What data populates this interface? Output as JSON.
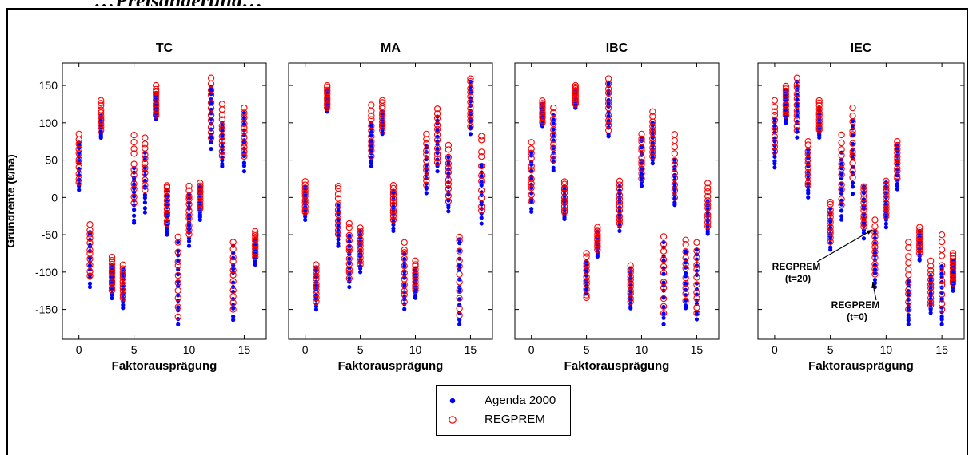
{
  "heading_fragment": "…Preisänderung…",
  "chart_data": [
    {
      "type": "scatter",
      "title": "TC",
      "xlabel": "Faktorausprägung",
      "ylabel": "Grundrente (€/ha)",
      "xlim": [
        -1.5,
        17
      ],
      "ylim": [
        -190,
        180
      ],
      "xticks": [
        0,
        5,
        10,
        15
      ],
      "yticks": [
        -150,
        -100,
        -50,
        0,
        50,
        100,
        150
      ],
      "grid": false,
      "series": [
        {
          "name": "Agenda 2000",
          "ranges": [
            [
              0,
              10,
              75
            ],
            [
              1,
              -120,
              -45
            ],
            [
              2,
              80,
              110
            ],
            [
              3,
              -135,
              -90
            ],
            [
              4,
              -148,
              -95
            ],
            [
              5,
              -35,
              40
            ],
            [
              6,
              -20,
              60
            ],
            [
              7,
              105,
              140
            ],
            [
              8,
              -50,
              10
            ],
            [
              9,
              -170,
              -60
            ],
            [
              10,
              -65,
              5
            ],
            [
              11,
              -30,
              15
            ],
            [
              12,
              65,
              150
            ],
            [
              13,
              40,
              100
            ],
            [
              14,
              -165,
              -65
            ],
            [
              15,
              35,
              115
            ],
            [
              16,
              -90,
              -55
            ]
          ]
        },
        {
          "name": "REGPREM",
          "ranges": [
            [
              0,
              20,
              85
            ],
            [
              1,
              -105,
              -35
            ],
            [
              2,
              90,
              130
            ],
            [
              3,
              -125,
              -80
            ],
            [
              4,
              -135,
              -90
            ],
            [
              5,
              -10,
              85
            ],
            [
              6,
              10,
              80
            ],
            [
              7,
              110,
              150
            ],
            [
              8,
              -35,
              17
            ],
            [
              9,
              -160,
              -50
            ],
            [
              10,
              -50,
              17
            ],
            [
              11,
              -15,
              20
            ],
            [
              12,
              80,
              160
            ],
            [
              13,
              55,
              125
            ],
            [
              14,
              -150,
              -60
            ],
            [
              15,
              55,
              120
            ],
            [
              16,
              -80,
              -45
            ]
          ]
        }
      ]
    },
    {
      "type": "scatter",
      "title": "MA",
      "xlabel": "Faktorausprägung",
      "ylabel": "",
      "xlim": [
        -1.5,
        17
      ],
      "ylim": [
        -190,
        180
      ],
      "xticks": [
        0,
        5,
        10,
        15
      ],
      "yticks": [
        -150,
        -100,
        -50,
        0,
        50,
        100,
        150
      ],
      "grid": false,
      "series": [
        {
          "name": "Agenda 2000",
          "ranges": [
            [
              0,
              -30,
              15
            ],
            [
              1,
              -150,
              -95
            ],
            [
              2,
              115,
              145
            ],
            [
              3,
              -65,
              -10
            ],
            [
              4,
              -120,
              -50
            ],
            [
              5,
              -100,
              -45
            ],
            [
              6,
              40,
              100
            ],
            [
              7,
              85,
              115
            ],
            [
              8,
              -45,
              10
            ],
            [
              9,
              -150,
              -75
            ],
            [
              10,
              -135,
              -95
            ],
            [
              11,
              5,
              70
            ],
            [
              12,
              35,
              110
            ],
            [
              13,
              -20,
              55
            ],
            [
              14,
              -170,
              -55
            ],
            [
              15,
              85,
              155
            ],
            [
              16,
              -35,
              45
            ]
          ]
        },
        {
          "name": "REGPREM",
          "ranges": [
            [
              0,
              -20,
              22
            ],
            [
              1,
              -140,
              -90
            ],
            [
              2,
              120,
              150
            ],
            [
              3,
              -50,
              17
            ],
            [
              4,
              -110,
              -35
            ],
            [
              5,
              -90,
              -40
            ],
            [
              6,
              55,
              125
            ],
            [
              7,
              90,
              130
            ],
            [
              8,
              -30,
              17
            ],
            [
              9,
              -140,
              -60
            ],
            [
              10,
              -125,
              -85
            ],
            [
              11,
              15,
              85
            ],
            [
              12,
              45,
              120
            ],
            [
              13,
              -5,
              70
            ],
            [
              14,
              -160,
              -50
            ],
            [
              15,
              95,
              160
            ],
            [
              16,
              -20,
              85
            ]
          ]
        }
      ]
    },
    {
      "type": "scatter",
      "title": "IBC",
      "xlabel": "Faktorausprägung",
      "ylabel": "",
      "xlim": [
        -1.5,
        17
      ],
      "ylim": [
        -190,
        180
      ],
      "xticks": [
        0,
        5,
        10,
        15
      ],
      "yticks": [
        -150,
        -100,
        -50,
        0,
        50,
        100,
        150
      ],
      "grid": false,
      "series": [
        {
          "name": "Agenda 2000",
          "ranges": [
            [
              0,
              -20,
              60
            ],
            [
              1,
              95,
              125
            ],
            [
              2,
              35,
              110
            ],
            [
              3,
              -30,
              15
            ],
            [
              4,
              120,
              145
            ],
            [
              5,
              -130,
              -85
            ],
            [
              6,
              -80,
              -45
            ],
            [
              7,
              80,
              155
            ],
            [
              8,
              -45,
              15
            ],
            [
              9,
              -150,
              -95
            ],
            [
              10,
              15,
              80
            ],
            [
              11,
              45,
              100
            ],
            [
              12,
              -170,
              -60
            ],
            [
              13,
              -10,
              50
            ],
            [
              14,
              -150,
              -70
            ],
            [
              15,
              -165,
              -70
            ],
            [
              16,
              -50,
              -5
            ]
          ]
        },
        {
          "name": "REGPREM",
          "ranges": [
            [
              0,
              -5,
              75
            ],
            [
              1,
              100,
              130
            ],
            [
              2,
              50,
              120
            ],
            [
              3,
              -20,
              22
            ],
            [
              4,
              125,
              150
            ],
            [
              5,
              -135,
              -75
            ],
            [
              6,
              -70,
              -40
            ],
            [
              7,
              90,
              160
            ],
            [
              8,
              -35,
              22
            ],
            [
              9,
              -140,
              -90
            ],
            [
              10,
              25,
              85
            ],
            [
              11,
              55,
              115
            ],
            [
              12,
              -155,
              -50
            ],
            [
              13,
              0,
              85
            ],
            [
              14,
              -140,
              -55
            ],
            [
              15,
              -155,
              -60
            ],
            [
              16,
              -40,
              20
            ]
          ]
        }
      ]
    },
    {
      "type": "scatter",
      "title": "IEC",
      "xlabel": "Faktorausprägung",
      "ylabel": "",
      "xlim": [
        -1.5,
        17
      ],
      "ylim": [
        -190,
        180
      ],
      "xticks": [
        0,
        5,
        10,
        15
      ],
      "yticks": [
        -150,
        -100,
        -50,
        0,
        50,
        100,
        150
      ],
      "grid": false,
      "series": [
        {
          "name": "Agenda 2000",
          "ranges": [
            [
              0,
              40,
              105
            ],
            [
              1,
              100,
              145
            ],
            [
              2,
              80,
              155
            ],
            [
              3,
              0,
              65
            ],
            [
              4,
              80,
              120
            ],
            [
              5,
              -70,
              -15
            ],
            [
              6,
              -30,
              60
            ],
            [
              7,
              5,
              105
            ],
            [
              8,
              -55,
              15
            ],
            [
              9,
              -120,
              -45
            ],
            [
              10,
              -40,
              20
            ],
            [
              11,
              10,
              70
            ],
            [
              12,
              -170,
              -110
            ],
            [
              13,
              -85,
              -45
            ],
            [
              14,
              -155,
              -105
            ],
            [
              15,
              -170,
              -90
            ],
            [
              16,
              -125,
              -85
            ]
          ]
        },
        {
          "name": "REGPREM",
          "ranges": [
            [
              0,
              60,
              130
            ],
            [
              1,
              110,
              150
            ],
            [
              2,
              90,
              160
            ],
            [
              3,
              15,
              75
            ],
            [
              4,
              90,
              130
            ],
            [
              5,
              -60,
              -5
            ],
            [
              6,
              -10,
              85
            ],
            [
              7,
              25,
              120
            ],
            [
              8,
              -40,
              15
            ],
            [
              9,
              -105,
              -30
            ],
            [
              10,
              -25,
              22
            ],
            [
              11,
              25,
              75
            ],
            [
              12,
              -150,
              -60
            ],
            [
              13,
              -75,
              -40
            ],
            [
              14,
              -145,
              -85
            ],
            [
              15,
              -150,
              -50
            ],
            [
              16,
              -115,
              -75
            ]
          ]
        }
      ],
      "annotations": [
        {
          "text": "REGPREM",
          "text2": "(t=20)",
          "x": 9,
          "y": -40
        },
        {
          "text": "REGPREM",
          "text2": "(t=0)",
          "x": 9,
          "y": -110
        }
      ]
    }
  ],
  "legend": {
    "placement": "bottom-center",
    "entries": [
      {
        "label": "Agenda 2000",
        "marker": "filled-dot",
        "color": "#0000ff"
      },
      {
        "label": "REGPREM",
        "marker": "open-circle",
        "color": "#ff0000"
      }
    ]
  },
  "colors": {
    "agenda": "#0000ff",
    "regprem": "#ff0000",
    "axis": "#000000"
  }
}
